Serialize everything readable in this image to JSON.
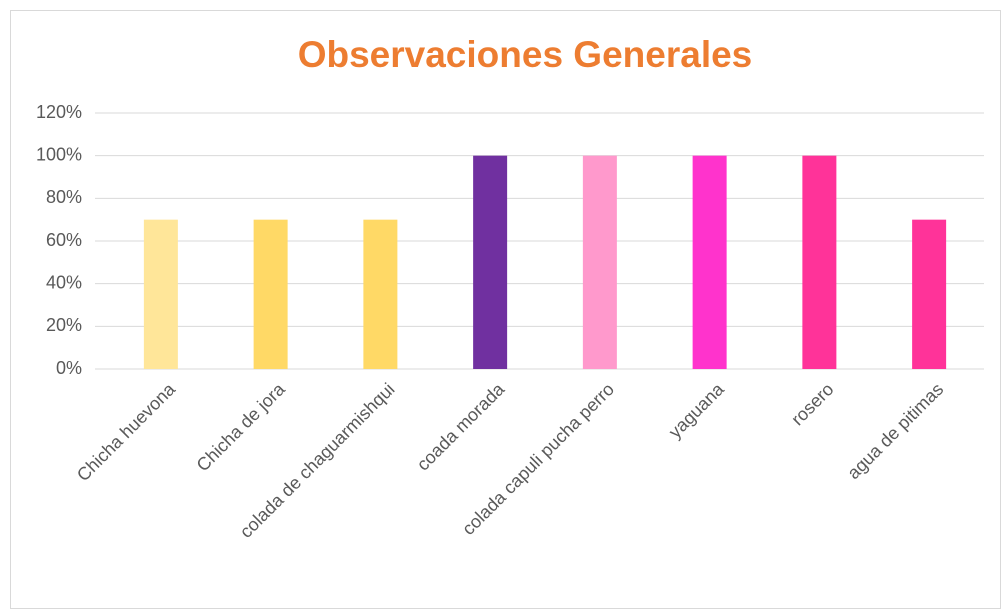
{
  "chart_data": {
    "type": "bar",
    "title": "Observaciones Generales",
    "categories": [
      "Chicha huevona",
      "Chicha de jora",
      "colada de chaguarmishqui",
      "coada morada",
      "colada capuli pucha perro",
      "yaguana",
      "rosero",
      "agua de pitimas"
    ],
    "values": [
      70,
      70,
      70,
      100,
      100,
      100,
      100,
      70
    ],
    "colors": [
      "#FFE699",
      "#FFD966",
      "#FFD966",
      "#7030A0",
      "#FF99CC",
      "#FF33CC",
      "#FF3399",
      "#FF3399"
    ],
    "ylim": [
      0,
      120
    ],
    "yticks": [
      {
        "value": 0,
        "label": "0%"
      },
      {
        "value": 20,
        "label": "20%"
      },
      {
        "value": 40,
        "label": "40%"
      },
      {
        "value": 60,
        "label": "60%"
      },
      {
        "value": 80,
        "label": "80%"
      },
      {
        "value": 100,
        "label": "100%"
      },
      {
        "value": 120,
        "label": "120%"
      }
    ],
    "grid": true
  }
}
